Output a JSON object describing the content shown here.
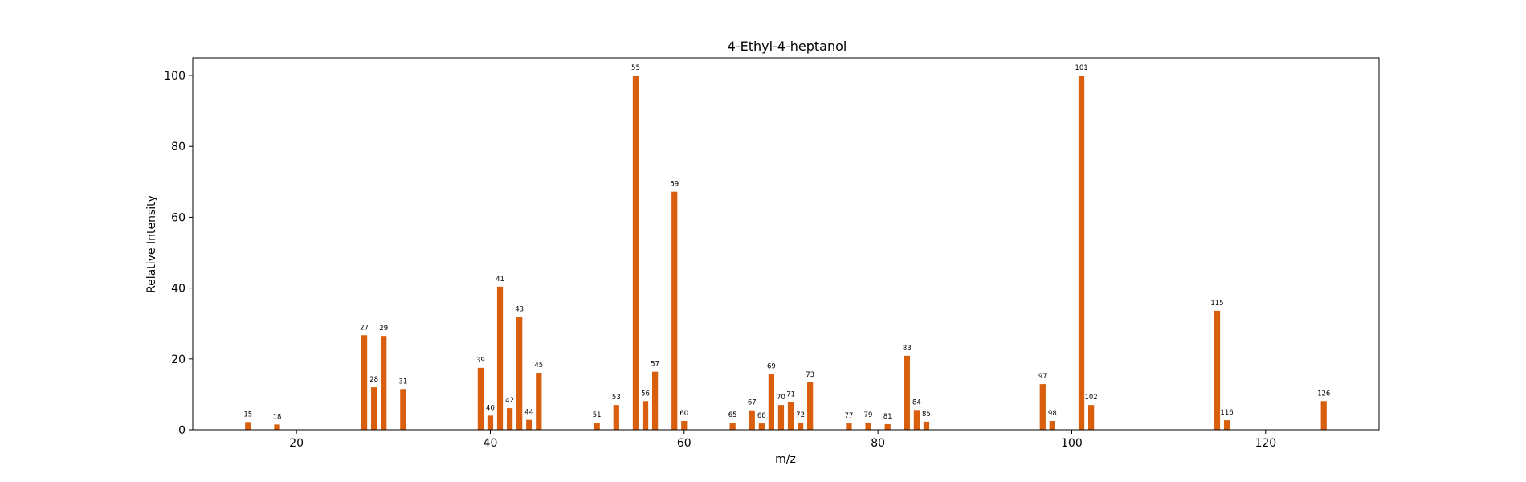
{
  "chart_data": {
    "type": "bar",
    "title": "4-Ethyl-4-heptanol",
    "xlabel": "m/z",
    "ylabel": "Relative Intensity",
    "xlim": [
      9.3,
      131.7
    ],
    "ylim": [
      0,
      105
    ],
    "xticks": [
      20,
      40,
      60,
      80,
      100,
      120
    ],
    "yticks": [
      0,
      20,
      40,
      60,
      80,
      100
    ],
    "grid": false,
    "bar_color": "#d95f0e",
    "x": [
      15,
      18,
      27,
      28,
      29,
      31,
      39,
      40,
      41,
      42,
      43,
      44,
      45,
      51,
      53,
      55,
      56,
      57,
      59,
      60,
      65,
      67,
      68,
      69,
      70,
      71,
      72,
      73,
      77,
      79,
      81,
      83,
      84,
      85,
      97,
      98,
      101,
      102,
      115,
      116,
      126
    ],
    "values": [
      2.2,
      1.5,
      26.7,
      12.0,
      26.5,
      11.5,
      17.5,
      4.0,
      40.4,
      6.1,
      31.9,
      2.8,
      16.1,
      2.0,
      7.0,
      100,
      8.1,
      16.4,
      67.2,
      2.5,
      2.0,
      5.5,
      1.8,
      15.8,
      7.0,
      7.8,
      2.0,
      13.4,
      1.8,
      2.0,
      1.6,
      20.9,
      5.6,
      2.3,
      12.9,
      2.5,
      100,
      7.0,
      33.6,
      2.7,
      8.1
    ]
  }
}
